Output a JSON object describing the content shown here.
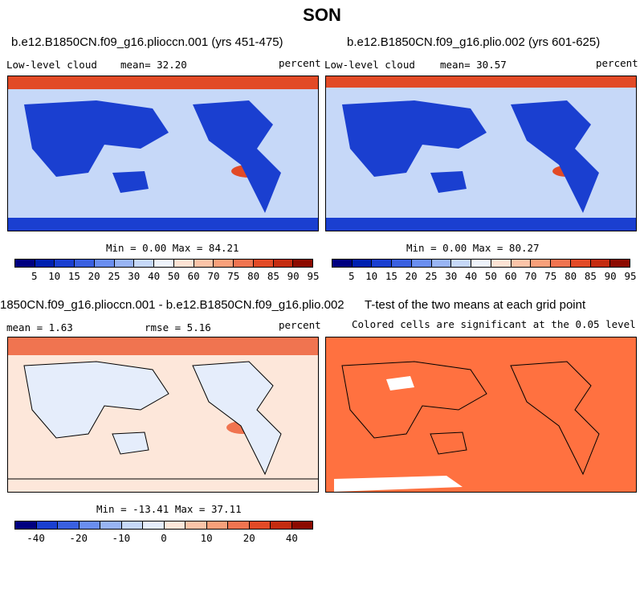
{
  "figure": {
    "title": "SON"
  },
  "panels": {
    "p1": {
      "title": "b.e12.B1850CN.f09_g16.plioccn.001 (yrs 451-475)",
      "left_label": "Low-level cloud",
      "mean_text": "mean=  32.20",
      "units": "percent",
      "minmax": "Min =   0.00 Max =  84.21"
    },
    "p2": {
      "title": "b.e12.B1850CN.f09_g16.plio.002 (yrs 601-625)",
      "left_label": "Low-level cloud",
      "mean_text": "mean=  30.57",
      "units": "percent",
      "minmax": "Min =   0.00 Max =  80.27"
    },
    "p3": {
      "title": "1850CN.f09_g16.plioccn.001 - b.e12.B1850CN.f09_g16.plio.002",
      "mean_text": "mean =   1.63",
      "rmse_text": "rmse =   5.16",
      "units": "percent",
      "minmax": "Min = -13.41 Max =  37.11"
    },
    "p4": {
      "title": "T-test of the two means at each grid point",
      "subtitle": "Colored cells are significant at the 0.05 level"
    }
  },
  "colorbars": {
    "abs": {
      "colors": [
        "#000080",
        "#0020b0",
        "#1a3fd0",
        "#3a60e0",
        "#6a8ef0",
        "#98b4f4",
        "#c6d8f8",
        "#eef3fb",
        "#fde3d4",
        "#fbc4a8",
        "#f8a07a",
        "#f07450",
        "#e24a26",
        "#c42c10",
        "#8c0a00"
      ],
      "labels": [
        "5",
        "10",
        "15",
        "20",
        "25",
        "30",
        "40",
        "50",
        "60",
        "70",
        "75",
        "80",
        "85",
        "90",
        "95"
      ]
    },
    "diff": {
      "colors": [
        "#000080",
        "#1a3fd0",
        "#3a60e0",
        "#6a8ef0",
        "#98b4f4",
        "#c6d8f8",
        "#e5edfb",
        "#fde7da",
        "#fbc4a8",
        "#f8a07a",
        "#f07450",
        "#e24a26",
        "#c42c10",
        "#8c0a00"
      ],
      "labels": [
        "-40",
        "-20",
        "-10",
        "0",
        "10",
        "20",
        "40"
      ]
    }
  },
  "map_colors": {
    "ocean_abs": "#c6d8f8",
    "land_abs": "#1a3fd0",
    "polar_high": "#e24a26",
    "diff_ocean": "#fde7da",
    "diff_land": "#e5edfb",
    "diff_north": "#f07450",
    "ttest_fill": "#ff7140",
    "ttest_blank": "#ffffff"
  }
}
